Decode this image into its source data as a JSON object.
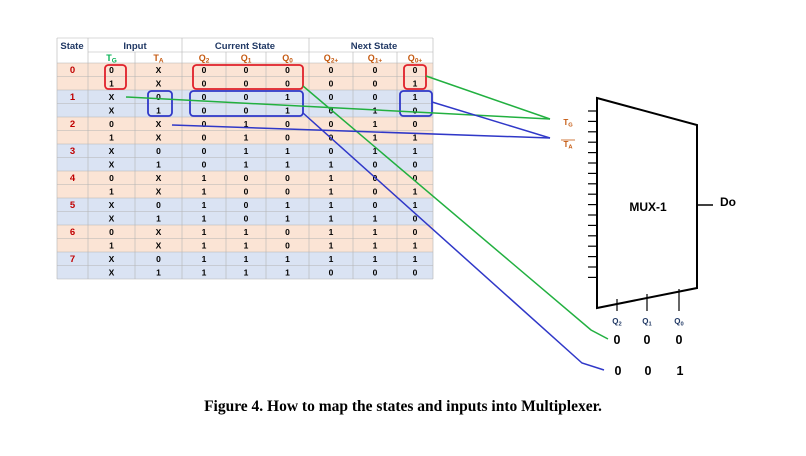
{
  "table": {
    "headers": {
      "state": "State",
      "input": "Input",
      "current": "Current State",
      "next": "Next State",
      "sub": [
        "TG",
        "TA",
        "Q2",
        "Q1",
        "Q0",
        "Q2+",
        "Q1+",
        "Q0+"
      ]
    },
    "states": [
      "0",
      "1",
      "2",
      "3",
      "4",
      "5",
      "6",
      "7"
    ],
    "rows": [
      [
        "0",
        "X",
        "0",
        "0",
        "0",
        "0",
        "0",
        "0"
      ],
      [
        "1",
        "X",
        "0",
        "0",
        "0",
        "0",
        "0",
        "1"
      ],
      [
        "X",
        "0",
        "0",
        "0",
        "1",
        "0",
        "0",
        "1"
      ],
      [
        "X",
        "1",
        "0",
        "0",
        "1",
        "0",
        "1",
        "0"
      ],
      [
        "0",
        "X",
        "0",
        "1",
        "0",
        "0",
        "1",
        "0"
      ],
      [
        "1",
        "X",
        "0",
        "1",
        "0",
        "0",
        "1",
        "1"
      ],
      [
        "X",
        "0",
        "0",
        "1",
        "1",
        "0",
        "1",
        "1"
      ],
      [
        "X",
        "1",
        "0",
        "1",
        "1",
        "1",
        "0",
        "0"
      ],
      [
        "0",
        "X",
        "1",
        "0",
        "0",
        "1",
        "0",
        "0"
      ],
      [
        "1",
        "X",
        "1",
        "0",
        "0",
        "1",
        "0",
        "1"
      ],
      [
        "X",
        "0",
        "1",
        "0",
        "1",
        "1",
        "0",
        "1"
      ],
      [
        "X",
        "1",
        "1",
        "0",
        "1",
        "1",
        "1",
        "0"
      ],
      [
        "0",
        "X",
        "1",
        "1",
        "0",
        "1",
        "1",
        "0"
      ],
      [
        "1",
        "X",
        "1",
        "1",
        "0",
        "1",
        "1",
        "1"
      ],
      [
        "X",
        "0",
        "1",
        "1",
        "1",
        "1",
        "1",
        "1"
      ],
      [
        "X",
        "1",
        "1",
        "1",
        "1",
        "0",
        "0",
        "0"
      ]
    ]
  },
  "mux": {
    "title": "MUX-1",
    "output": "Do",
    "input_tg": "TG",
    "input_ta": "TA",
    "select_labels": [
      "Q2",
      "Q1",
      "Q0"
    ],
    "select_values_1": [
      "0",
      "0",
      "0"
    ],
    "select_values_2": [
      "0",
      "0",
      "1"
    ]
  },
  "caption": "Figure 4. How to map the states and inputs into Multiplexer.",
  "colors": {
    "header_text": "#203864",
    "sub_text": "#c55a11",
    "sub_text_tg": "#00b050",
    "state_text": "#c00000",
    "row_orange": "#fbe4d5",
    "row_blue": "#dae3f3",
    "red": "#e0202a",
    "blue": "#3038c8",
    "green": "#22b040"
  }
}
